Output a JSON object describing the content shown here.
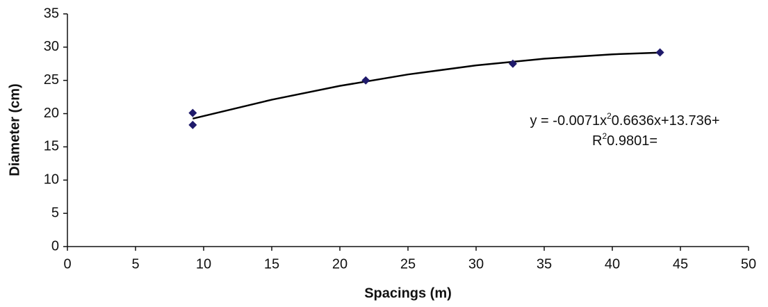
{
  "chart_data": {
    "type": "scatter",
    "x_label": "Spacings (m)",
    "y_label": "Diameter (cm)",
    "x": [
      9.2,
      9.2,
      21.9,
      32.7,
      43.5
    ],
    "values": [
      20.1,
      18.3,
      25.0,
      27.5,
      29.2
    ],
    "color": "#1f1a6b",
    "trendline": {
      "color": "#000000",
      "x": [
        9.2,
        15,
        20,
        25,
        30,
        35,
        40,
        43.5
      ],
      "values": [
        19.24,
        22.09,
        24.17,
        25.89,
        27.25,
        28.26,
        28.92,
        29.17
      ]
    },
    "annotations": [
      [
        "y = -0.0071x",
        "2",
        "0.6636x+13.736+"
      ],
      [
        "R",
        "2",
        "0.9801="
      ]
    ],
    "xlim": [
      0,
      50
    ],
    "xticks": [
      0,
      5,
      10,
      15,
      20,
      25,
      30,
      35,
      40,
      45,
      50
    ],
    "ylim": [
      0,
      35
    ],
    "yticks": [
      0,
      5,
      10,
      15,
      20,
      25,
      30,
      35
    ],
    "grid": false
  }
}
